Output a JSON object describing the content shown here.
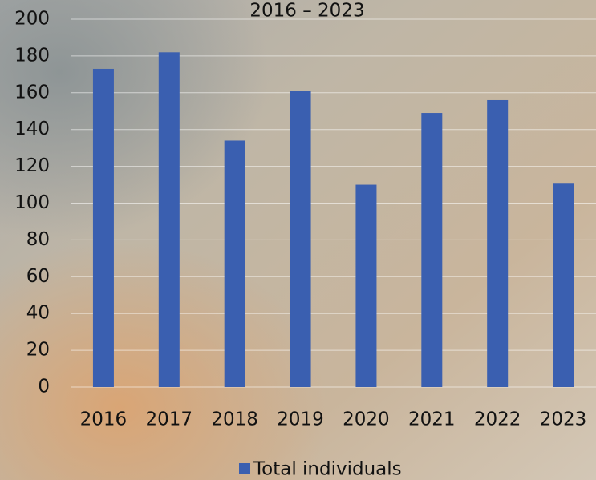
{
  "chart_data": {
    "type": "bar",
    "title": "2016 – 2023",
    "categories": [
      "2016",
      "2017",
      "2018",
      "2019",
      "2020",
      "2021",
      "2022",
      "2023"
    ],
    "series": [
      {
        "name": "Total individuals",
        "color": "#3a5fb0",
        "values": [
          173,
          182,
          134,
          161,
          110,
          149,
          156,
          111
        ]
      }
    ],
    "ylim": [
      0,
      200
    ],
    "yticks": [
      0,
      20,
      40,
      60,
      80,
      100,
      120,
      140,
      160,
      180,
      200
    ],
    "grid": true
  }
}
